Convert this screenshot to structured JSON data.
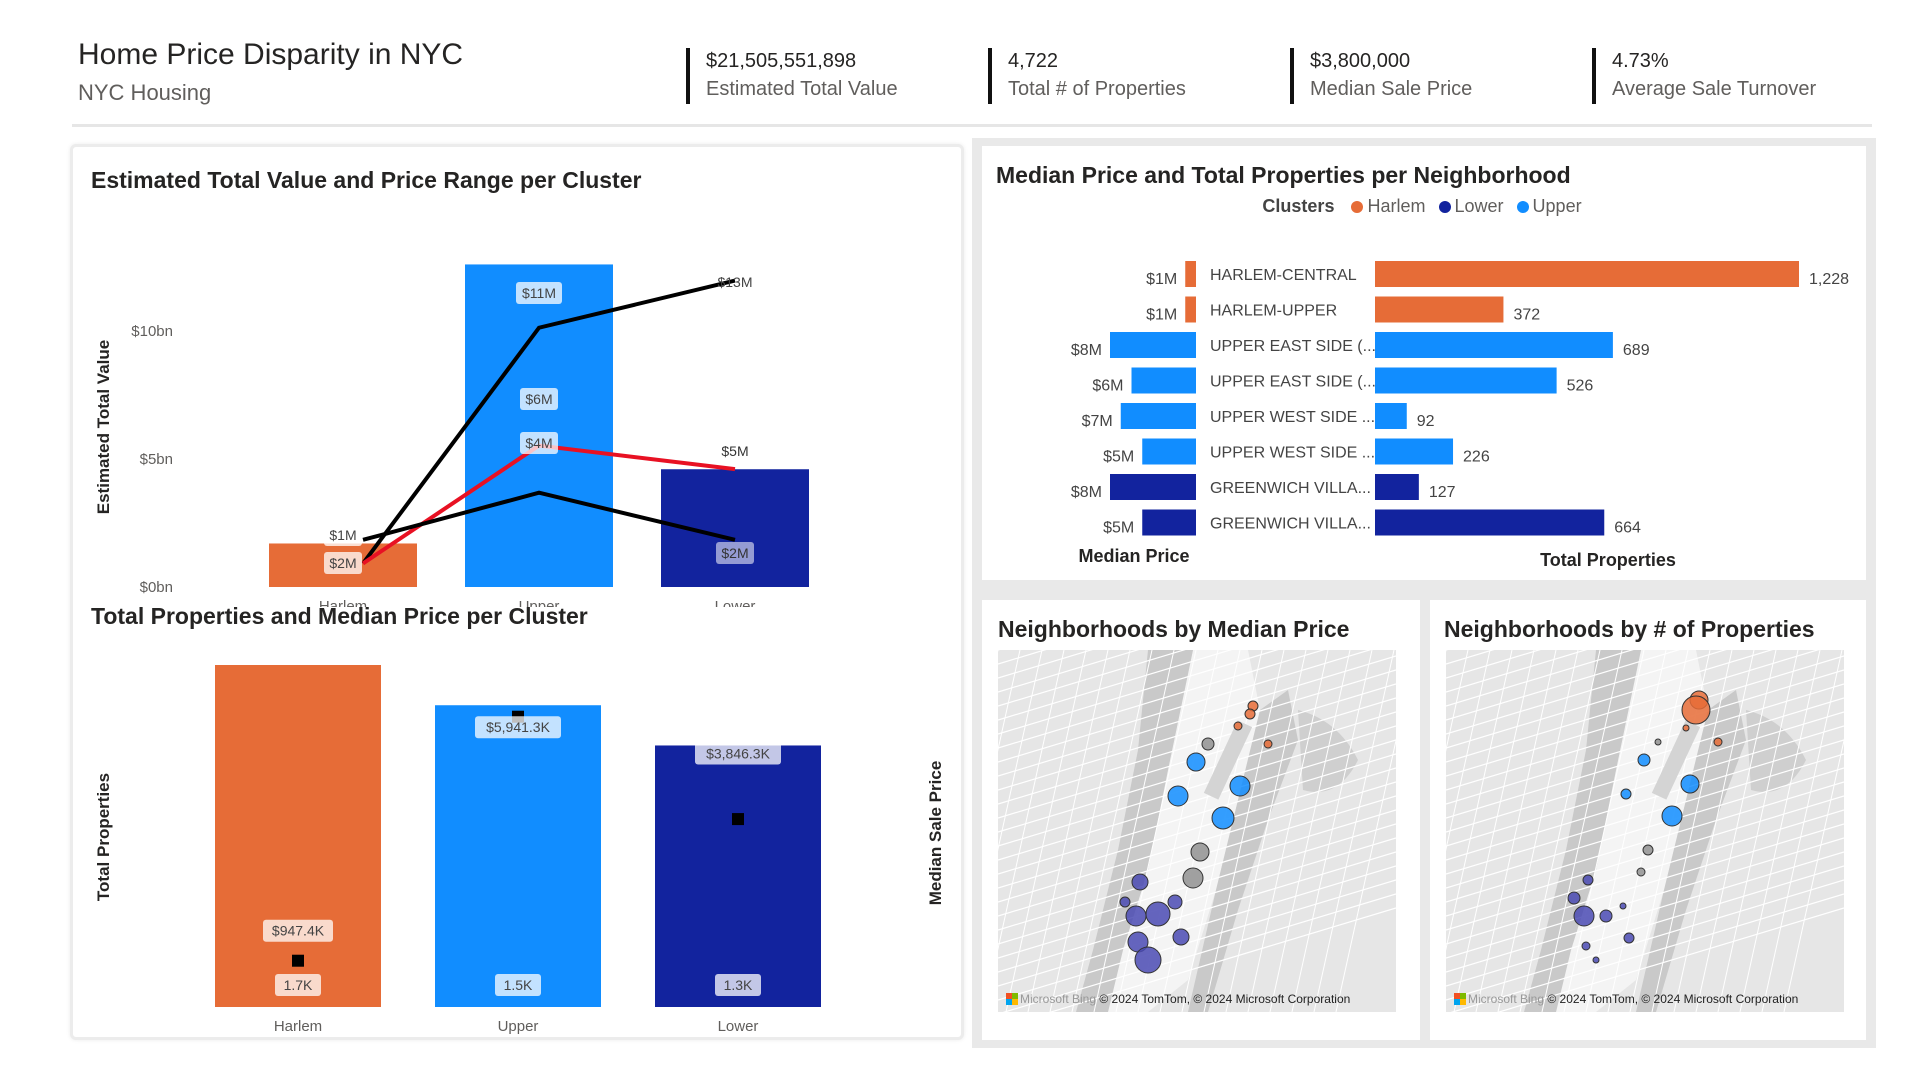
{
  "header": {
    "title": "Home Price Disparity in NYC",
    "subtitle": "NYC Housing",
    "kpis": [
      {
        "value": "$21,505,551,898",
        "label": "Estimated Total Value"
      },
      {
        "value": "4,722",
        "label": "Total # of Properties"
      },
      {
        "value": "$3,800,000",
        "label": "Median Sale Price"
      },
      {
        "value": "4.73%",
        "label": "Average Sale Turnover"
      }
    ]
  },
  "colors": {
    "harlem": "#E66C37",
    "upper": "#118DFF",
    "lower": "#12239E",
    "black": "#000000",
    "red": "#E81123"
  },
  "chart_data": [
    {
      "type": "bar",
      "title": "Estimated Total Value and Price Range per Cluster",
      "ylabel": "Estimated Total Value",
      "ylim": [
        0,
        12500000000
      ],
      "yticks": [
        {
          "v": 0,
          "label": "$0bn"
        },
        {
          "v": 5000000000,
          "label": "$5bn"
        },
        {
          "v": 10000000000,
          "label": "$10bn"
        }
      ],
      "categories": [
        "Harlem",
        "Upper",
        "Lower"
      ],
      "values": [
        1700000000,
        12600000000,
        4600000000
      ],
      "lines": [
        {
          "values": [
            1000000,
            11000000,
            13000000
          ],
          "labels": [
            "$1M",
            "$11M",
            "$13M"
          ],
          "color": "black"
        },
        {
          "values": [
            1000000,
            6000000,
            5000000
          ],
          "labels": [
            "",
            "$6M",
            "$5M"
          ],
          "color": "red"
        },
        {
          "values": [
            2000000,
            4000000,
            2000000
          ],
          "labels": [
            "$2M",
            "$4M",
            "$2M"
          ],
          "color": "black"
        }
      ]
    },
    {
      "type": "bar",
      "title": "Total Properties and Median Price per Cluster",
      "ylabel": "Total Properties",
      "y2label": "Median Sale Price",
      "categories": [
        "Harlem",
        "Upper",
        "Lower"
      ],
      "series": [
        {
          "name": "Total Properties",
          "values": [
            1700,
            1500,
            1300
          ],
          "labels": [
            "1.7K",
            "1.5K",
            "1.3K"
          ]
        },
        {
          "name": "Median Sale Price",
          "values": [
            947400,
            5941300,
            3846300
          ],
          "labels": [
            "$947.4K",
            "$5,941.3K",
            "$3,846.3K"
          ]
        }
      ],
      "ylim": [
        0,
        1700
      ],
      "y2lim": [
        0,
        7000000
      ]
    },
    {
      "type": "bar",
      "title": "Median Price and Total Properties per Neighborhood",
      "legend_title": "Clusters",
      "legend": [
        {
          "name": "Harlem",
          "color": "harlem"
        },
        {
          "name": "Lower",
          "color": "lower"
        },
        {
          "name": "Upper",
          "color": "upper"
        }
      ],
      "left_axis_label": "Median Price",
      "right_axis_label": "Total Properties",
      "rows": [
        {
          "name": "HARLEM-CENTRAL",
          "cluster": "harlem",
          "median": 1000000,
          "median_label": "$1M",
          "total": 1228,
          "total_label": "1,228"
        },
        {
          "name": "HARLEM-UPPER",
          "cluster": "harlem",
          "median": 1000000,
          "median_label": "$1M",
          "total": 372,
          "total_label": "372"
        },
        {
          "name": "UPPER EAST SIDE (...",
          "cluster": "upper",
          "median": 8000000,
          "median_label": "$8M",
          "total": 689,
          "total_label": "689"
        },
        {
          "name": "UPPER EAST SIDE (...",
          "cluster": "upper",
          "median": 6000000,
          "median_label": "$6M",
          "total": 526,
          "total_label": "526"
        },
        {
          "name": "UPPER WEST SIDE ...",
          "cluster": "upper",
          "median": 7000000,
          "median_label": "$7M",
          "total": 92,
          "total_label": "92"
        },
        {
          "name": "UPPER WEST SIDE ...",
          "cluster": "upper",
          "median": 5000000,
          "median_label": "$5M",
          "total": 226,
          "total_label": "226"
        },
        {
          "name": "GREENWICH VILLA...",
          "cluster": "lower",
          "median": 8000000,
          "median_label": "$8M",
          "total": 127,
          "total_label": "127"
        },
        {
          "name": "GREENWICH VILLA...",
          "cluster": "lower",
          "median": 5000000,
          "median_label": "$5M",
          "total": 664,
          "total_label": "664"
        }
      ]
    }
  ],
  "maps": [
    {
      "title": "Neighborhoods by Median Price",
      "attribution": "© 2024 TomTom, © 2024 Microsoft Corporation",
      "brand": "Microsoft Bing"
    },
    {
      "title": "Neighborhoods by # of Properties",
      "attribution": "© 2024 TomTom, © 2024 Microsoft Corporation",
      "brand": "Microsoft Bing"
    }
  ]
}
